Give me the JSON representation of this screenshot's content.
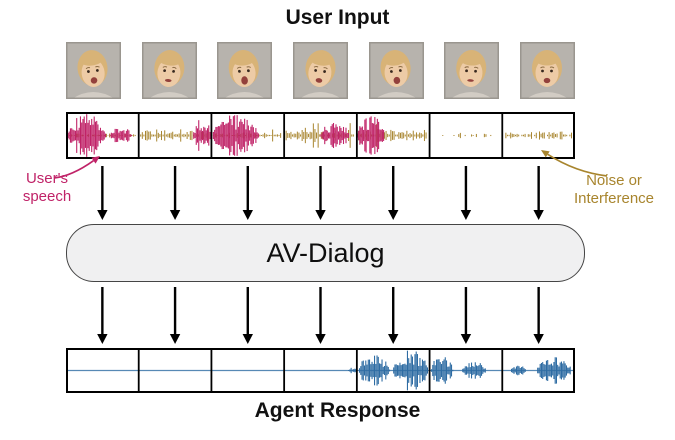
{
  "title": "User Input",
  "footer": "Agent Response",
  "model_box": {
    "label": "AV-Dialog",
    "fill": "#f0f0f1",
    "border": "#454545"
  },
  "annotations": {
    "user_speech": "User's\nspeech",
    "noise": "Noise or\nInterference"
  },
  "colors": {
    "speech": "#c02368",
    "noise": "#a8852e",
    "agent": "#2e6ca3",
    "arrow": "#000000",
    "strip_border": "#000000"
  },
  "frame_count": 7,
  "user_waveform": {
    "description": "user-speech-and-noise-waveform",
    "segments": [
      {
        "noise": 0.1,
        "density": 1.0,
        "bursts": [
          [
            0.02,
            0.55,
            1.0
          ],
          [
            0.6,
            0.9,
            0.42
          ]
        ]
      },
      {
        "noise": 0.3,
        "density": 1.0,
        "bursts": [
          [
            0.75,
            1.0,
            0.8
          ]
        ]
      },
      {
        "noise": 0.15,
        "density": 1.0,
        "bursts": [
          [
            0.02,
            0.65,
            1.0
          ]
        ]
      },
      {
        "noise": 0.32,
        "density": 1.0,
        "bursts": [
          [
            0.5,
            0.9,
            0.62
          ]
        ]
      },
      {
        "noise": 0.28,
        "density": 1.0,
        "bursts": [
          [
            0.0,
            0.38,
            0.92
          ]
        ]
      },
      {
        "noise": 0.14,
        "density": 0.22,
        "bursts": []
      },
      {
        "noise": 0.22,
        "density": 0.85,
        "bursts": []
      }
    ]
  },
  "agent_waveform": {
    "description": "agent-response-waveform",
    "baseline": true,
    "segments": [
      {
        "bursts": []
      },
      {
        "bursts": []
      },
      {
        "bursts": []
      },
      {
        "bursts": [
          [
            0.88,
            1.0,
            0.15
          ]
        ]
      },
      {
        "bursts": [
          [
            0.03,
            0.45,
            0.88
          ],
          [
            0.5,
            0.98,
            1.0
          ]
        ]
      },
      {
        "bursts": [
          [
            0.02,
            0.32,
            0.75
          ],
          [
            0.45,
            0.78,
            0.5
          ]
        ]
      },
      {
        "bursts": [
          [
            0.12,
            0.32,
            0.3
          ],
          [
            0.48,
            0.95,
            0.65
          ]
        ]
      }
    ]
  }
}
